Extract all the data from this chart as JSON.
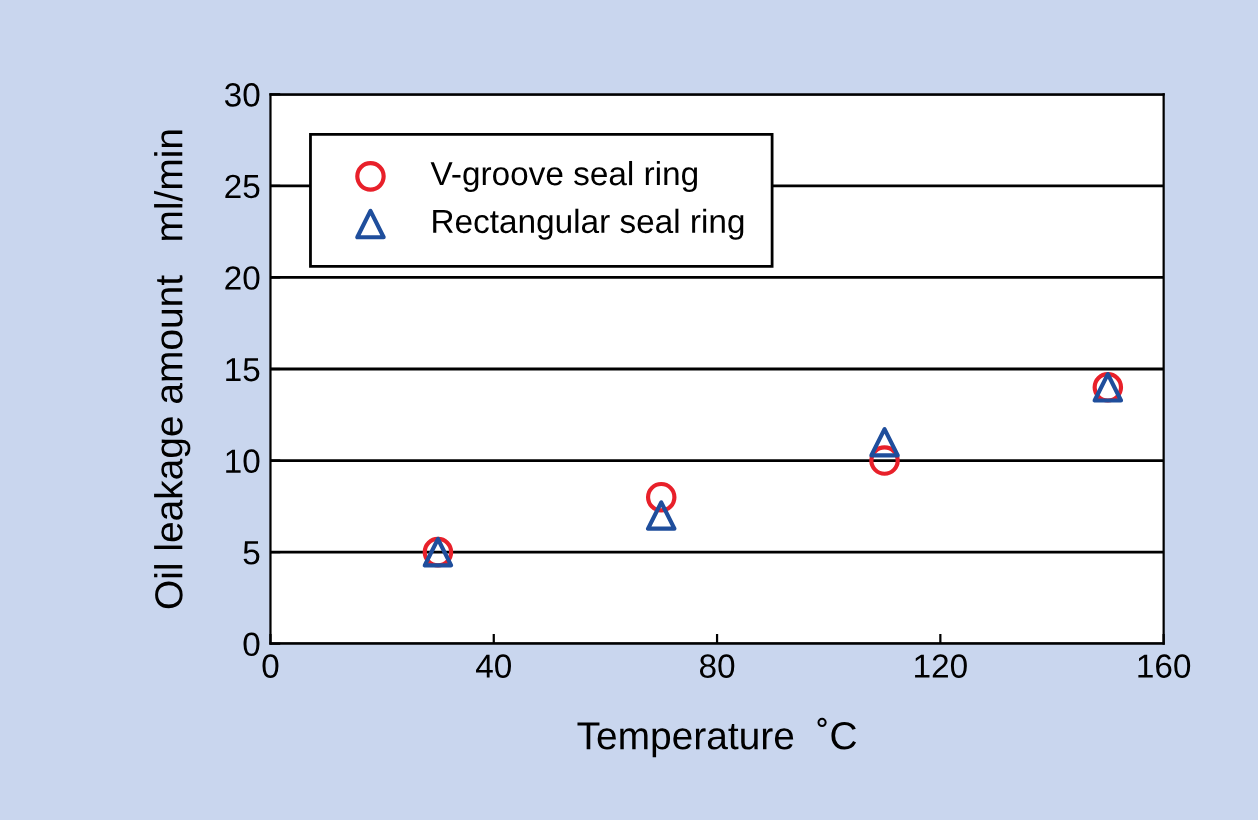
{
  "chart_data": {
    "type": "scatter",
    "xlabel": "Temperature  ˚C",
    "ylabel": "Oil leakage amount   ml/min",
    "series": [
      {
        "name": "V-groove seal ring",
        "color": "#e8202a",
        "marker": "circle",
        "x": [
          30,
          70,
          110,
          150
        ],
        "values": [
          5,
          8,
          10,
          14
        ]
      },
      {
        "name": "Rectangular seal ring",
        "color": "#1f4e9c",
        "marker": "triangle",
        "x": [
          30,
          70,
          110,
          150
        ],
        "values": [
          5,
          7,
          11,
          14
        ]
      }
    ],
    "xlim": [
      0,
      160
    ],
    "xticks": [
      0,
      40,
      80,
      120,
      160
    ],
    "ylim": [
      0,
      30
    ],
    "yticks": [
      0,
      5,
      10,
      15,
      20,
      25,
      30
    ],
    "grid": "y",
    "legend": "top left"
  }
}
